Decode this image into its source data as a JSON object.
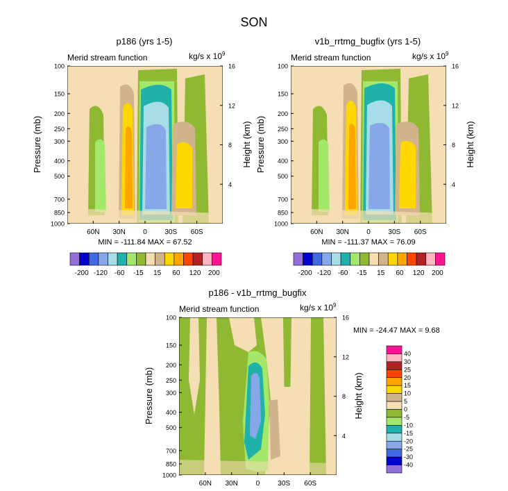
{
  "figure_title": "SON",
  "chart_data": [
    {
      "type": "contour",
      "title": "p186 (yrs 1-5)",
      "left_subtitle": "Merid stream function",
      "units_prefix": "kg/s x 10",
      "units_exp": "9",
      "ylabel": "Pressure (mb)",
      "ylabel_right": "Height (km)",
      "x_ticks": [
        "60N",
        "30N",
        "0",
        "30S",
        "60S"
      ],
      "x_tick_lats": [
        60,
        30,
        0,
        -30,
        -60
      ],
      "xlim": [
        90,
        -90
      ],
      "y_ticks": [
        100,
        150,
        200,
        250,
        300,
        400,
        500,
        700,
        850,
        1000
      ],
      "ylim": [
        100,
        1000
      ],
      "height_ticks": [
        4,
        8,
        12,
        16
      ],
      "stats": "MIN = -111.84   MAX = 67.52"
    },
    {
      "type": "contour",
      "title": "v1b_rrtmg_bugfix (yrs 1-5)",
      "left_subtitle": "Merid stream function",
      "units_prefix": "kg/s x 10",
      "units_exp": "9",
      "ylabel": "Pressure (mb)",
      "ylabel_right": "Height (km)",
      "x_ticks": [
        "60N",
        "30N",
        "0",
        "30S",
        "60S"
      ],
      "x_tick_lats": [
        60,
        30,
        0,
        -30,
        -60
      ],
      "xlim": [
        90,
        -90
      ],
      "y_ticks": [
        100,
        150,
        200,
        250,
        300,
        400,
        500,
        700,
        850,
        1000
      ],
      "ylim": [
        100,
        1000
      ],
      "height_ticks": [
        4,
        8,
        12,
        16
      ],
      "stats": "MIN = -111.37   MAX = 76.09"
    },
    {
      "type": "contour",
      "title": "p186 - v1b_rrtmg_bugfix",
      "left_subtitle": "Merid stream function",
      "units_prefix": "kg/s x 10",
      "units_exp": "9",
      "ylabel": "Pressure (mb)",
      "ylabel_right": "Height (km)",
      "x_ticks": [
        "60N",
        "30N",
        "0",
        "30S",
        "60S"
      ],
      "x_tick_lats": [
        60,
        30,
        0,
        -30,
        -60
      ],
      "xlim": [
        90,
        -90
      ],
      "y_ticks": [
        100,
        150,
        200,
        250,
        300,
        400,
        500,
        700,
        850,
        1000
      ],
      "ylim": [
        100,
        1000
      ],
      "height_ticks": [
        4,
        8,
        12,
        16
      ],
      "stats": "MIN = -24.47   MAX =   9.68"
    }
  ],
  "colorbar_top": {
    "labels": [
      "-200",
      "-120",
      "-60",
      "-15",
      "15",
      "60",
      "120",
      "200"
    ],
    "colors": [
      "#9370DB",
      "#0000CD",
      "#4169E1",
      "#87A8E8",
      "#A7DDE6",
      "#20B2AA",
      "#A3E86B",
      "#8FB833",
      "#F5DEB3",
      "#D2B48C",
      "#FFD700",
      "#FFA500",
      "#FF4500",
      "#B22222",
      "#FFB6C1",
      "#FF1493"
    ]
  },
  "colorbar_diff": {
    "labels": [
      "40",
      "30",
      "25",
      "20",
      "15",
      "10",
      "5",
      "0",
      "-5",
      "-10",
      "-15",
      "-20",
      "-25",
      "-30",
      "-40"
    ],
    "colors": [
      "#FF1493",
      "#FFB6C1",
      "#B22222",
      "#FF4500",
      "#FFA500",
      "#FFD700",
      "#D2B48C",
      "#F5DEB3",
      "#8FB833",
      "#A3E86B",
      "#20B2AA",
      "#A7DDE6",
      "#87A8E8",
      "#4169E1",
      "#0000CD",
      "#9370DB"
    ]
  }
}
